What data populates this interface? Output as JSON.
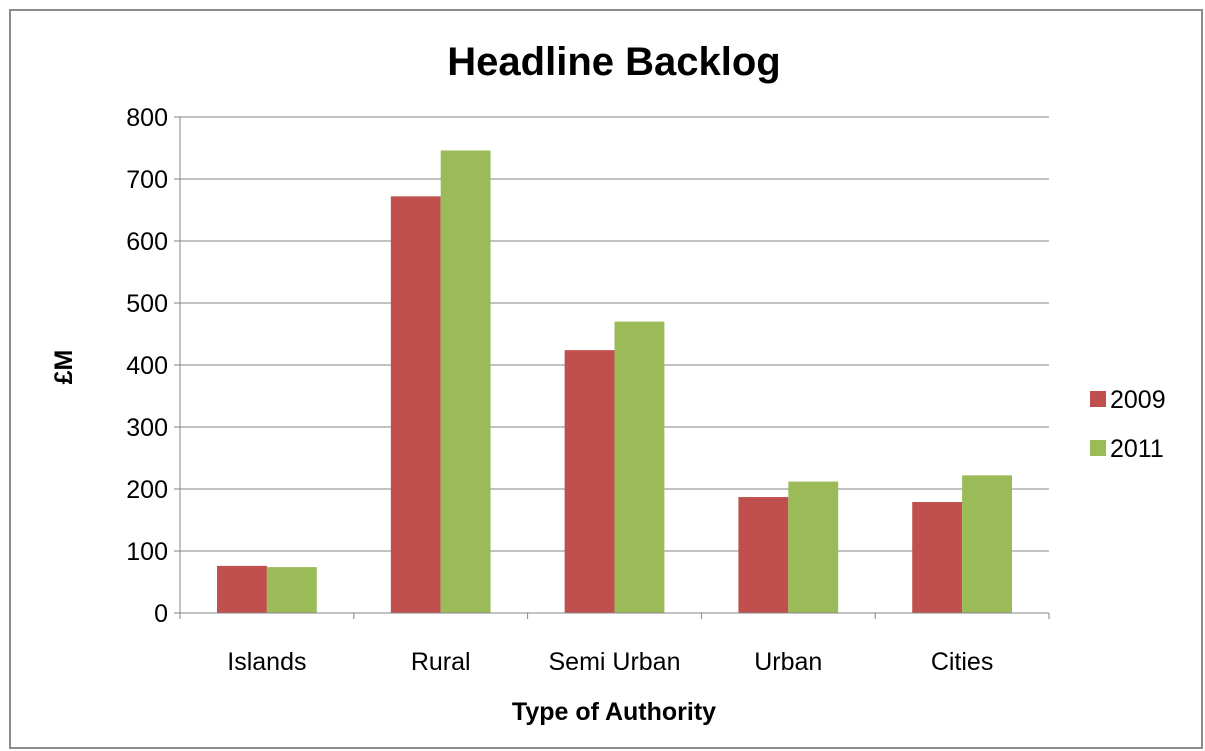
{
  "chart_data": {
    "type": "bar",
    "title": "Headline Backlog",
    "xlabel": "Type of Authority",
    "ylabel": "£M",
    "categories": [
      "Islands",
      "Rural",
      "Semi Urban",
      "Urban",
      "Cities"
    ],
    "series": [
      {
        "name": "2009",
        "color": "#c0504d",
        "values": [
          76,
          672,
          424,
          187,
          179
        ]
      },
      {
        "name": "2011",
        "color": "#9bbb59",
        "values": [
          74,
          746,
          470,
          212,
          222
        ]
      }
    ],
    "ylim": [
      0,
      800
    ],
    "yticks": [
      "0",
      "100",
      "200",
      "300",
      "400",
      "500",
      "600",
      "700",
      "800"
    ],
    "grid": true,
    "legend_position": "right"
  }
}
